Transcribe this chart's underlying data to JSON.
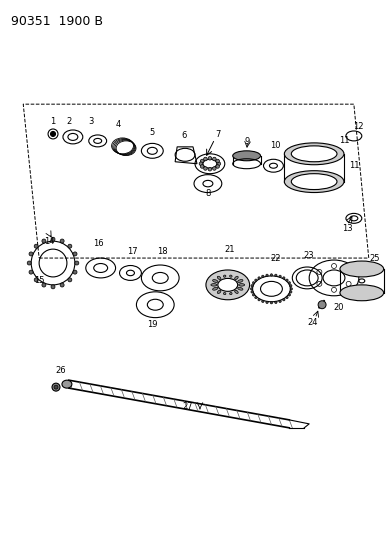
{
  "title": "90351  1900 B",
  "background_color": "#ffffff",
  "line_color": "#000000",
  "fig_width": 3.9,
  "fig_height": 5.33,
  "dpi": 100
}
